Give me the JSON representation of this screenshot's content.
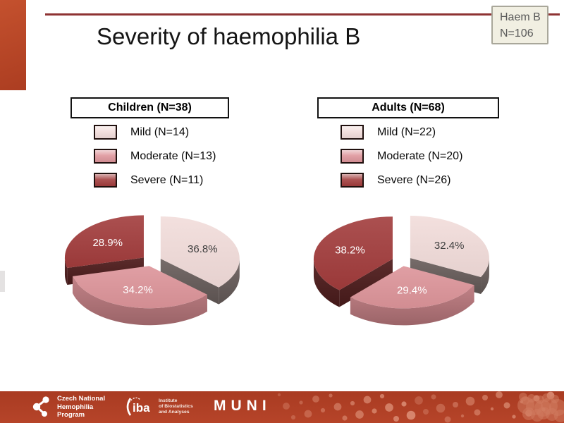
{
  "slide": {
    "title": "Severity of haemophilia B",
    "badge": {
      "study": "Haem B",
      "n_label": "N=106"
    }
  },
  "chart_data": [
    {
      "type": "pie",
      "style": "3d-exploded",
      "title": "Children (N=38)",
      "group": "Children",
      "n": 38,
      "categories": [
        "Mild",
        "Moderate",
        "Severe"
      ],
      "counts": [
        14,
        13,
        11
      ],
      "values_pct": [
        36.8,
        34.2,
        28.9
      ],
      "legend_labels": [
        "Mild (N=14)",
        "Moderate (N=13)",
        "Severe (N=11)"
      ],
      "slice_labels": [
        "36.8%",
        "34.2%",
        "28.9%"
      ],
      "colors": [
        "#f2dcda",
        "#dd949a",
        "#a23c3c"
      ],
      "side_colors": [
        "#6e6360",
        "#bd7a7f",
        "#521f1f"
      ],
      "label_colors": [
        "#3f3f3f",
        "#ffffff",
        "#ffffff"
      ],
      "start_angle_deg": 0,
      "direction": "clockwise",
      "legend_position": "above"
    },
    {
      "type": "pie",
      "style": "3d-exploded",
      "title": "Adults (N=68)",
      "group": "Adults",
      "n": 68,
      "categories": [
        "Mild",
        "Moderate",
        "Severe"
      ],
      "counts": [
        22,
        20,
        26
      ],
      "values_pct": [
        32.4,
        29.4,
        38.2
      ],
      "legend_labels": [
        "Mild (N=22)",
        "Moderate (N=20)",
        "Severe (N=26)"
      ],
      "slice_labels": [
        "32.4%",
        "29.4%",
        "38.2%"
      ],
      "colors": [
        "#f2dcda",
        "#dd949a",
        "#a23c3c"
      ],
      "side_colors": [
        "#6e6360",
        "#bd7a7f",
        "#521f1f"
      ],
      "label_colors": [
        "#3f3f3f",
        "#ffffff",
        "#ffffff"
      ],
      "start_angle_deg": 0,
      "direction": "clockwise",
      "legend_position": "above"
    }
  ],
  "footer": {
    "org1": {
      "name": "Czech National Hemophilia Program",
      "lines": [
        "Czech National",
        "Hemophilia",
        "Program"
      ]
    },
    "org2": {
      "abbr": "iba",
      "lines": [
        "Institute",
        "of Biostatistics",
        "and Analyses"
      ]
    },
    "org3": {
      "name": "MUNI"
    }
  },
  "colors": {
    "accent_bar": "#b8432a",
    "header_rule": "#8e3333",
    "badge_bg": "#f1efe2",
    "badge_border": "#a9a79a",
    "badge_text": "#595959",
    "footer_bg": "#b04024",
    "pattern_dot": "#e59e86"
  }
}
